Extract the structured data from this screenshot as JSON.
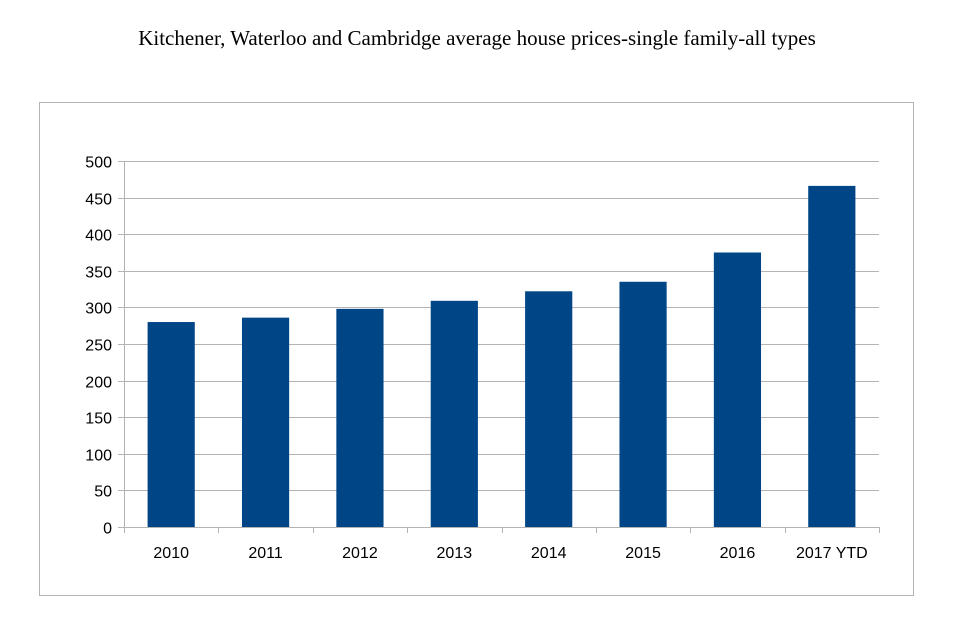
{
  "chart_data": {
    "type": "bar",
    "title": "Kitchener, Waterloo and Cambridge average house prices-single family-all types",
    "categories": [
      "2010",
      "2011",
      "2012",
      "2013",
      "2014",
      "2015",
      "2016",
      "2017 YTD"
    ],
    "values": [
      280,
      286,
      298,
      309,
      322,
      335,
      375,
      466
    ],
    "ylim": [
      0,
      500
    ],
    "yticks": [
      0,
      50,
      100,
      150,
      200,
      250,
      300,
      350,
      400,
      450,
      500
    ],
    "grid": true,
    "bar_color": "#004586",
    "xlabel": "",
    "ylabel": ""
  }
}
